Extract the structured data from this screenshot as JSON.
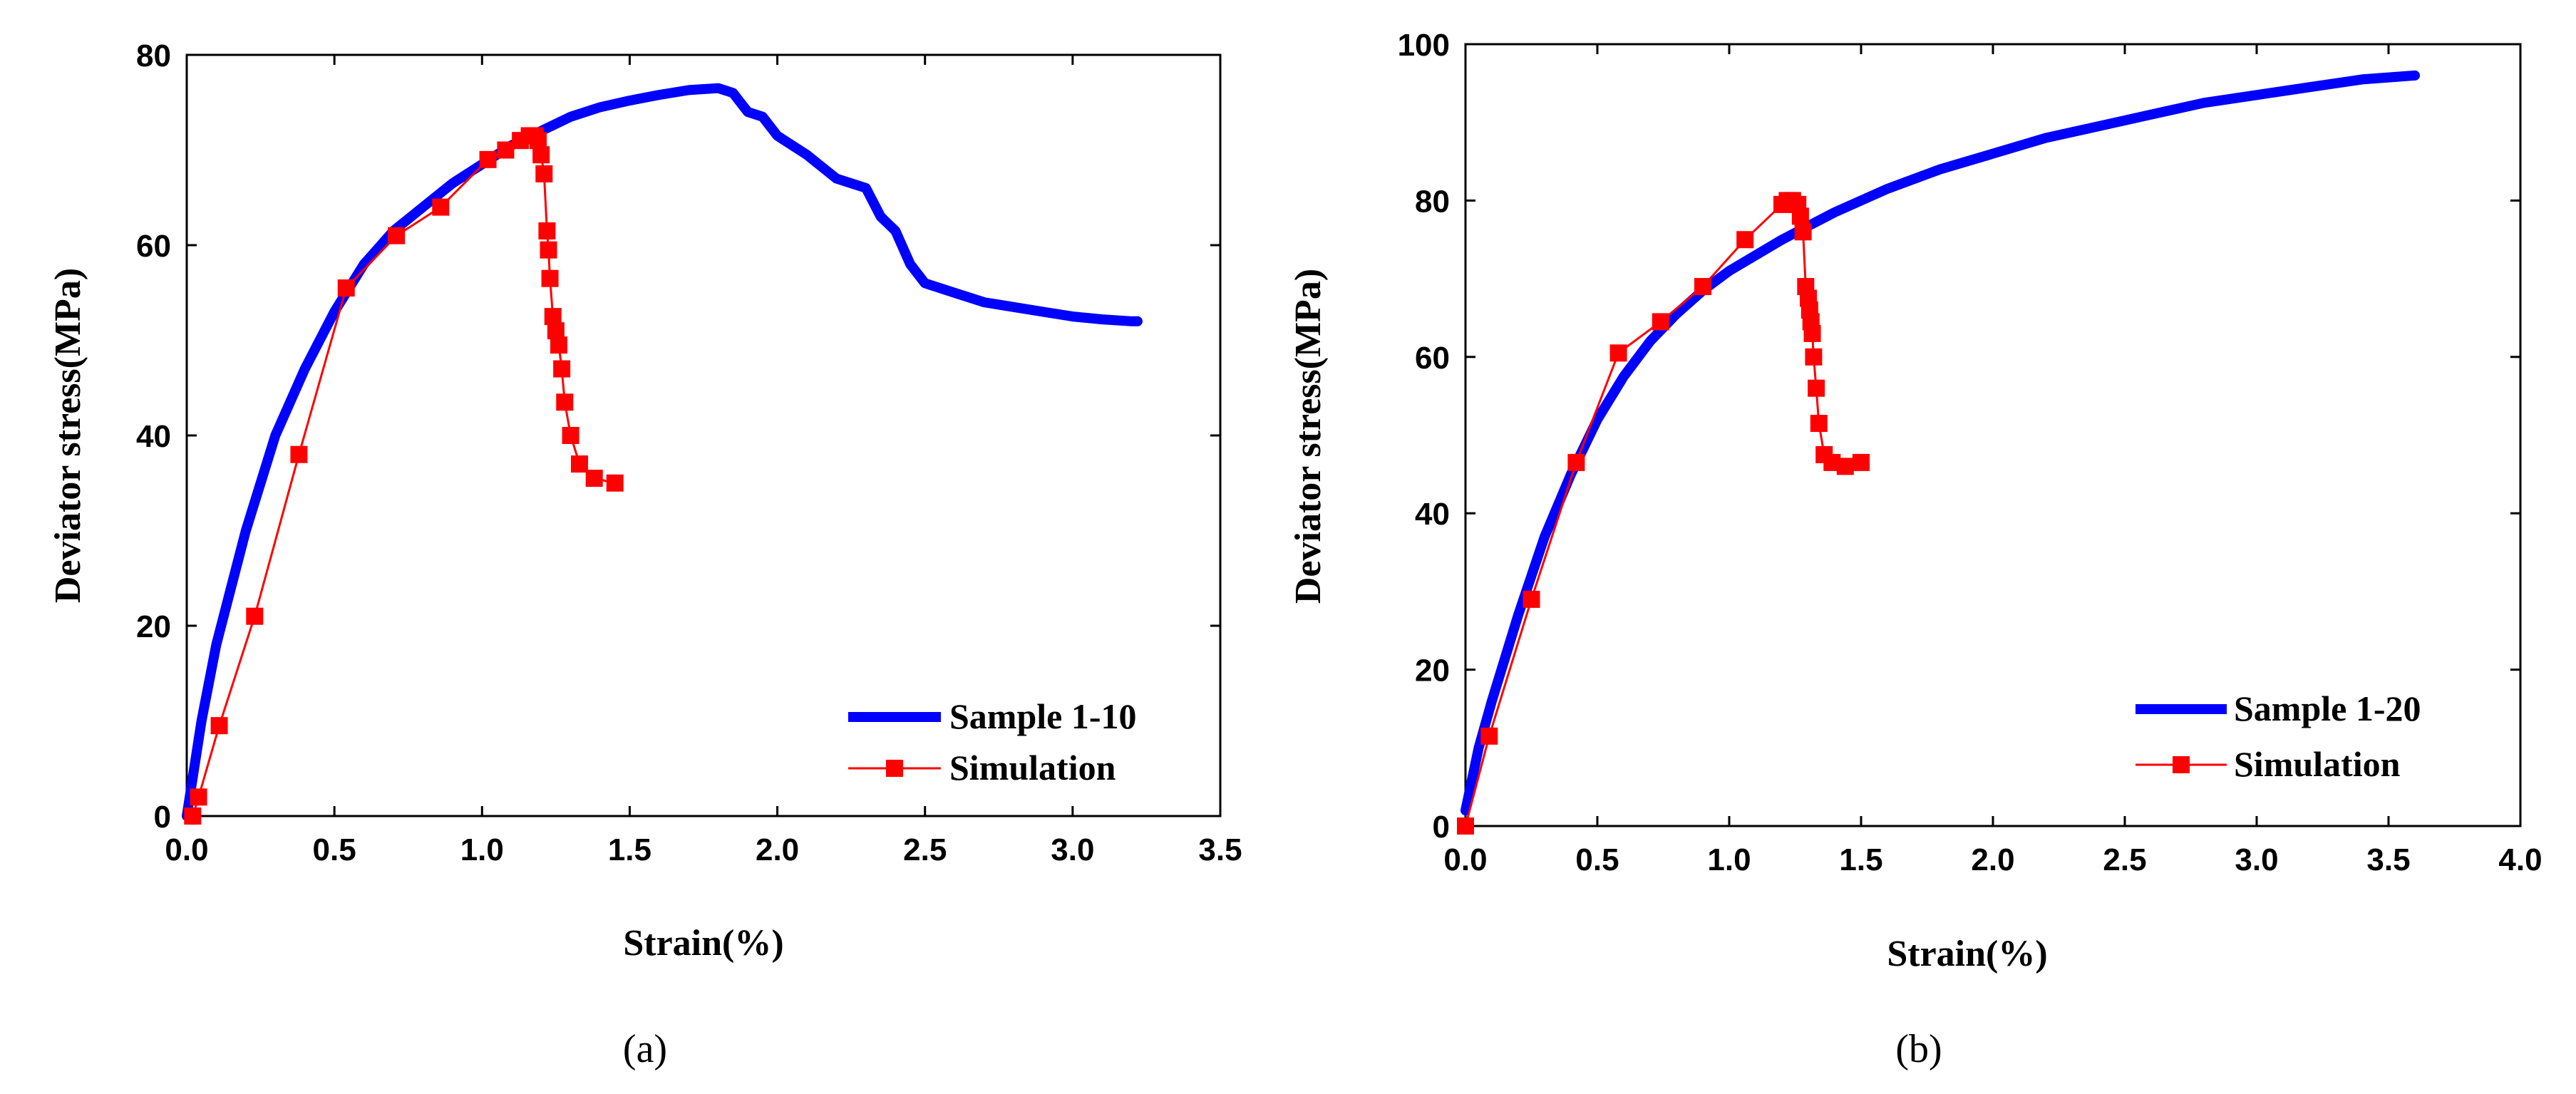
{
  "chart_data": [
    {
      "type": "line",
      "panel_label": "(a)",
      "xlabel": "Strain(%)",
      "ylabel": "Deviator stress(MPa)",
      "xlim": [
        0,
        3.5
      ],
      "ylim": [
        0,
        80
      ],
      "xticks": [
        0.0,
        0.5,
        1.0,
        1.5,
        2.0,
        2.5,
        3.0,
        3.5
      ],
      "yticks": [
        0,
        20,
        40,
        60,
        80
      ],
      "xtick_labels": [
        "0.0",
        "0.5",
        "1.0",
        "1.5",
        "2.0",
        "2.5",
        "3.0",
        "3.5"
      ],
      "ytick_labels": [
        "0",
        "20",
        "40",
        "60",
        "80"
      ],
      "legend_position": "bottom-right",
      "series": [
        {
          "name": "Sample 1-10",
          "color": "#0000ff",
          "style": "thick-line",
          "x": [
            0.0,
            0.05,
            0.1,
            0.15,
            0.2,
            0.3,
            0.4,
            0.5,
            0.6,
            0.7,
            0.8,
            0.9,
            1.0,
            1.1,
            1.2,
            1.3,
            1.4,
            1.5,
            1.6,
            1.7,
            1.8,
            1.85,
            1.9,
            1.95,
            2.0,
            2.1,
            2.2,
            2.3,
            2.35,
            2.4,
            2.45,
            2.5,
            2.6,
            2.7,
            2.8,
            2.9,
            3.0,
            3.1,
            3.2,
            3.22
          ],
          "y": [
            0,
            10,
            18,
            24,
            30,
            40,
            47,
            53,
            58,
            61.5,
            64,
            66.5,
            68.5,
            70.5,
            72,
            73.5,
            74.5,
            75.2,
            75.8,
            76.3,
            76.5,
            76,
            74,
            73.5,
            71.5,
            69.5,
            67,
            66,
            63,
            61.5,
            58,
            56,
            55,
            54,
            53.5,
            53,
            52.5,
            52.2,
            52,
            52
          ]
        },
        {
          "name": "Simulation",
          "color": "#ff0000",
          "style": "line-square-markers",
          "x": [
            0.02,
            0.04,
            0.11,
            0.23,
            0.38,
            0.54,
            0.71,
            0.86,
            1.02,
            1.08,
            1.13,
            1.16,
            1.18,
            1.19,
            1.2,
            1.21,
            1.22,
            1.225,
            1.23,
            1.24,
            1.25,
            1.26,
            1.27,
            1.28,
            1.3,
            1.33,
            1.38,
            1.45
          ],
          "y": [
            0,
            2,
            9.5,
            21,
            38,
            55.5,
            61,
            64,
            69,
            70,
            71,
            71.5,
            71.5,
            71,
            69.5,
            67.5,
            61.5,
            59.5,
            56.5,
            52.5,
            51,
            49.5,
            47,
            43.5,
            40,
            37,
            35.5,
            35
          ]
        }
      ]
    },
    {
      "type": "line",
      "panel_label": "(b)",
      "xlabel": "Strain(%)",
      "ylabel": "Deviator stress(MPa)",
      "xlim": [
        0,
        4.0
      ],
      "ylim": [
        0,
        100
      ],
      "xticks": [
        0.0,
        0.5,
        1.0,
        1.5,
        2.0,
        2.5,
        3.0,
        3.5,
        4.0
      ],
      "yticks": [
        0,
        20,
        40,
        60,
        80,
        100
      ],
      "xtick_labels": [
        "0.0",
        "0.5",
        "1.0",
        "1.5",
        "2.0",
        "2.5",
        "3.0",
        "3.5",
        "4.0"
      ],
      "ytick_labels": [
        "0",
        "20",
        "40",
        "60",
        "80",
        "100"
      ],
      "legend_position": "bottom-right",
      "series": [
        {
          "name": "Sample 1-20",
          "color": "#0000ff",
          "style": "thick-line",
          "x": [
            0.0,
            0.05,
            0.1,
            0.2,
            0.3,
            0.4,
            0.5,
            0.6,
            0.7,
            0.8,
            0.9,
            1.0,
            1.2,
            1.4,
            1.6,
            1.8,
            2.0,
            2.2,
            2.4,
            2.6,
            2.8,
            3.0,
            3.2,
            3.4,
            3.6
          ],
          "y": [
            2,
            10,
            16,
            27,
            37,
            45,
            52,
            57.5,
            62,
            65.5,
            68.5,
            71,
            75,
            78.5,
            81.5,
            84,
            86,
            88,
            89.5,
            91,
            92.5,
            93.5,
            94.5,
            95.5,
            96
          ]
        },
        {
          "name": "Simulation",
          "color": "#ff0000",
          "style": "line-square-markers",
          "x": [
            0.0,
            0.09,
            0.25,
            0.42,
            0.58,
            0.74,
            0.9,
            1.06,
            1.2,
            1.22,
            1.24,
            1.26,
            1.27,
            1.28,
            1.29,
            1.3,
            1.305,
            1.31,
            1.315,
            1.32,
            1.33,
            1.34,
            1.36,
            1.39,
            1.44,
            1.5
          ],
          "y": [
            0,
            11.5,
            29,
            46.5,
            60.5,
            64.5,
            69,
            75,
            79.5,
            80,
            80,
            79.5,
            78,
            76,
            69,
            67.5,
            66,
            64.5,
            63,
            60,
            56,
            51.5,
            47.5,
            46.5,
            46,
            46.5
          ]
        }
      ]
    }
  ]
}
